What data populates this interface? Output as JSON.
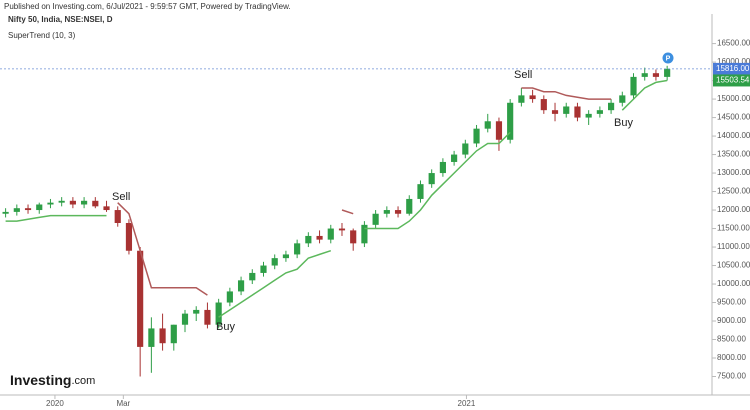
{
  "chart_data": {
    "type": "candlestick",
    "published": "Published on Investing.com, 6/Jul/2021 - 9:59:57 GMT, Powered by TradingView.",
    "title": "Nifty 50, India, NSE:NSEI, D",
    "indicator": "SuperTrend (10, 3)",
    "logo": {
      "brand": "Investing",
      "suffix": ".com"
    },
    "marker": "P",
    "up_color": "#2e9e47",
    "down_color": "#a83232",
    "supertrend_up_color": "#5cb85c",
    "supertrend_down_color": "#b05a5a",
    "open": [
      11900,
      11950,
      12050,
      12000,
      12150,
      12200,
      12250,
      12150,
      12250,
      12100,
      12000,
      11650,
      10900,
      8300,
      8800,
      8400,
      8900,
      9200,
      9300,
      8900,
      9500,
      9800,
      10100,
      10300,
      10500,
      10700,
      10800,
      11100,
      11300,
      11200,
      11500,
      11450,
      11100,
      11600,
      11900,
      12000,
      11900,
      12300,
      12700,
      13000,
      13300,
      13500,
      13800,
      14200,
      14400,
      13900,
      14900,
      15100,
      15000,
      14700,
      14600,
      14800,
      14500,
      14600,
      14700,
      14900,
      15100,
      15600,
      15700,
      15600
    ],
    "high": [
      12050,
      12150,
      12150,
      12200,
      12300,
      12350,
      12350,
      12350,
      12350,
      12250,
      12100,
      11750,
      11000,
      9100,
      9200,
      8900,
      9300,
      9400,
      9500,
      9600,
      9900,
      10200,
      10400,
      10600,
      10800,
      10900,
      11200,
      11400,
      11450,
      11600,
      11650,
      11500,
      11700,
      12000,
      12100,
      12100,
      12400,
      12800,
      13100,
      13400,
      13600,
      13900,
      14300,
      14600,
      14500,
      15000,
      15300,
      15250,
      15100,
      14900,
      14900,
      14900,
      14700,
      14800,
      15000,
      15200,
      15700,
      15850,
      15800,
      15900
    ],
    "low": [
      11800,
      11850,
      11900,
      11900,
      12050,
      12100,
      12050,
      12050,
      12050,
      11950,
      11550,
      10800,
      7500,
      7600,
      8200,
      8200,
      8700,
      9000,
      8800,
      8800,
      9400,
      9700,
      10000,
      10200,
      10400,
      10600,
      10700,
      11000,
      11100,
      11100,
      11300,
      10900,
      11000,
      11500,
      11800,
      11800,
      11850,
      12200,
      12600,
      12900,
      13200,
      13400,
      13700,
      14100,
      13600,
      13800,
      14800,
      14900,
      14600,
      14400,
      14500,
      14400,
      14300,
      14500,
      14600,
      14800,
      15000,
      15500,
      15500,
      15500
    ],
    "close": [
      11950,
      12050,
      12000,
      12150,
      12200,
      12250,
      12150,
      12250,
      12100,
      12000,
      11650,
      10900,
      8300,
      8800,
      8400,
      8900,
      9200,
      9300,
      8900,
      9500,
      9800,
      10100,
      10300,
      10500,
      10700,
      10800,
      11100,
      11300,
      11200,
      11500,
      11450,
      11100,
      11600,
      11900,
      12000,
      11900,
      12300,
      12700,
      13000,
      13300,
      13500,
      13800,
      14200,
      14400,
      13900,
      14900,
      15100,
      15000,
      14700,
      14600,
      14800,
      14500,
      14600,
      14700,
      14900,
      15100,
      15600,
      15700,
      15600,
      15816
    ],
    "supertrend_up": [
      11700,
      11700,
      11750,
      11800,
      11850,
      11850,
      11850,
      11850,
      11850,
      11850,
      null,
      null,
      null,
      null,
      null,
      null,
      null,
      null,
      null,
      9100,
      9300,
      9500,
      9700,
      9900,
      10100,
      10300,
      10400,
      10700,
      10800,
      10900,
      null,
      null,
      11500,
      11500,
      11500,
      11500,
      11700,
      12000,
      12400,
      12700,
      13000,
      13300,
      13600,
      13800,
      13800,
      14100,
      null,
      null,
      null,
      null,
      null,
      null,
      null,
      null,
      null,
      14700,
      15000,
      15300,
      15450,
      15503.54
    ],
    "supertrend_down": [
      null,
      null,
      null,
      null,
      null,
      null,
      null,
      null,
      null,
      null,
      12200,
      11900,
      10900,
      9900,
      9900,
      9900,
      9900,
      9900,
      9700,
      null,
      null,
      null,
      null,
      null,
      null,
      null,
      null,
      null,
      null,
      null,
      12000,
      11900,
      null,
      null,
      null,
      null,
      null,
      null,
      null,
      null,
      null,
      null,
      null,
      null,
      null,
      null,
      15300,
      15300,
      15200,
      15200,
      15100,
      15050,
      15000,
      15000,
      15000,
      null,
      null,
      null,
      null,
      null
    ],
    "last_price": {
      "value": 15816,
      "label": "15816.00"
    },
    "supertrend_last": {
      "value": 15503.54,
      "label": "15503.54"
    },
    "annotations": [
      "Sell",
      "Buy",
      "Sell",
      "Buy"
    ],
    "xlim": [
      -0.5,
      63
    ],
    "xticks": [
      {
        "value": 4.4,
        "label": "2020"
      },
      {
        "value": 10.5,
        "label": "Mar"
      },
      {
        "value": 41.1,
        "label": "2021"
      }
    ],
    "ylim": [
      7000,
      17300
    ],
    "yticks": [
      {
        "value": 7500,
        "label": "7500.00"
      },
      {
        "value": 8000,
        "label": "8000.00"
      },
      {
        "value": 8500,
        "label": "8500.00"
      },
      {
        "value": 9000,
        "label": "9000.00"
      },
      {
        "value": 9500,
        "label": "9500.00"
      },
      {
        "value": 10000,
        "label": "10000.00"
      },
      {
        "value": 10500,
        "label": "10500.00"
      },
      {
        "value": 11000,
        "label": "11000.00"
      },
      {
        "value": 11500,
        "label": "11500.00"
      },
      {
        "value": 12000,
        "label": "12000.00"
      },
      {
        "value": 12500,
        "label": "12500.00"
      },
      {
        "value": 13000,
        "label": "13000.00"
      },
      {
        "value": 13500,
        "label": "13500.00"
      },
      {
        "value": 14000,
        "label": "14000.00"
      },
      {
        "value": 14500,
        "label": "14500.00"
      },
      {
        "value": 15000,
        "label": "15000.00"
      },
      {
        "value": 15500,
        "label": "15500.00"
      },
      {
        "value": 16000,
        "label": "16000.00"
      },
      {
        "value": 16500,
        "label": "16500.00"
      }
    ]
  }
}
